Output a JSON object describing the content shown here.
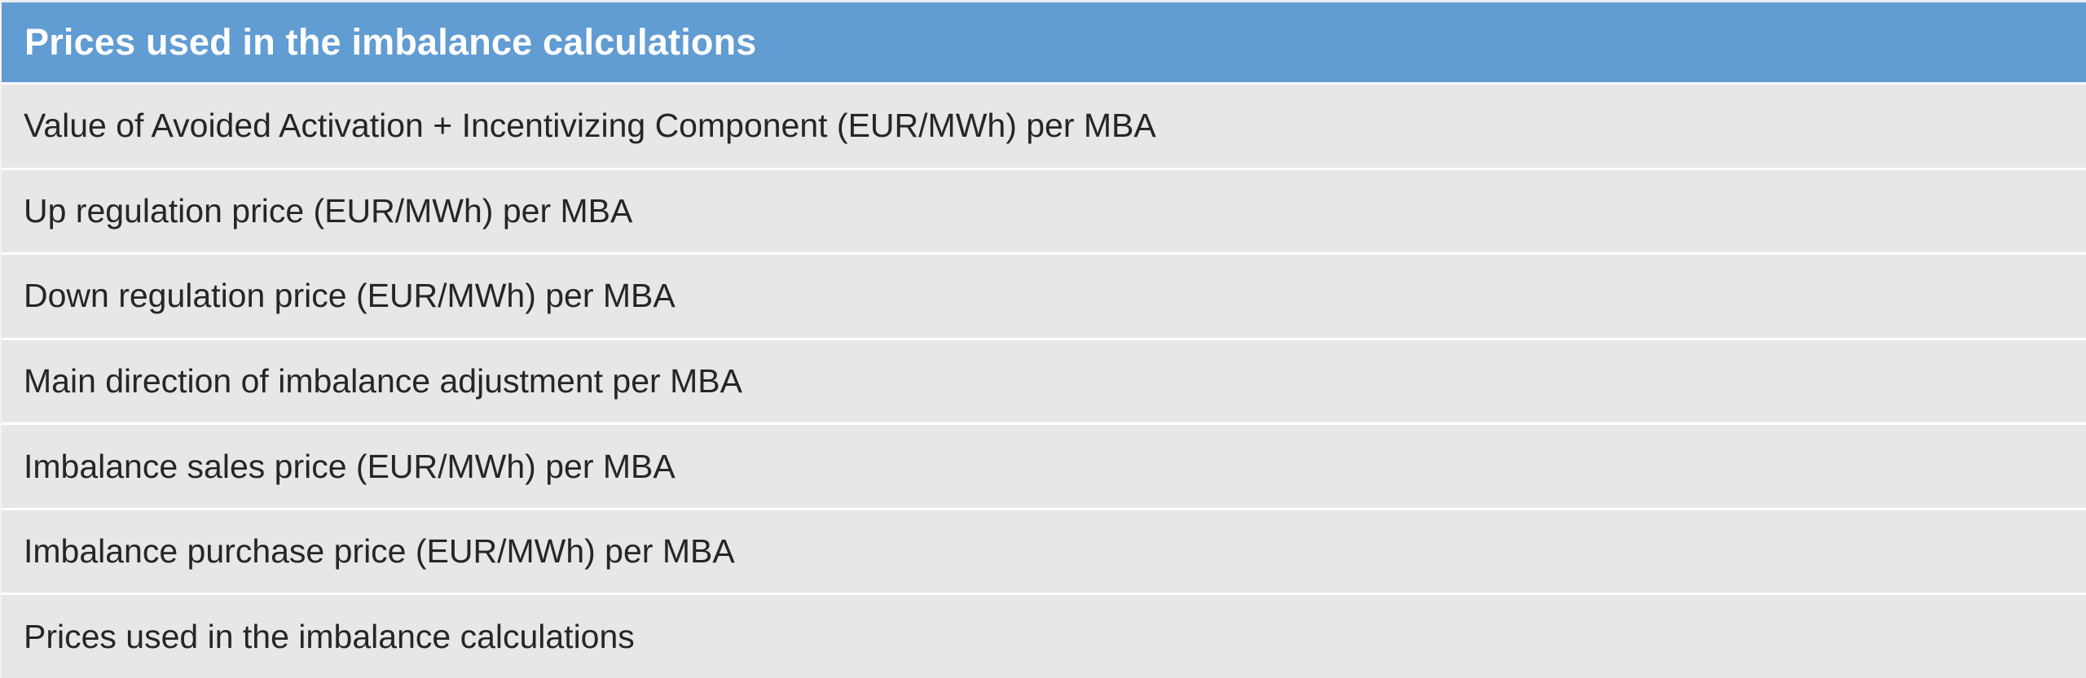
{
  "table": {
    "header": "Prices used in the imbalance calculations",
    "rows": [
      "Value of Avoided Activation + Incentivizing Component (EUR/MWh) per MBA",
      "Up regulation price (EUR/MWh) per MBA",
      "Down regulation price (EUR/MWh) per MBA",
      "Main direction of imbalance adjustment per MBA",
      "Imbalance sales price (EUR/MWh) per MBA",
      "Imbalance purchase price (EUR/MWh) per MBA",
      "Prices used in the imbalance calculations"
    ]
  },
  "colors": {
    "header_background": "#619cd3",
    "header_text": "#ffffff",
    "row_background": "#e8e6e7",
    "row_text": "#262626",
    "divider": "#ffffff"
  }
}
